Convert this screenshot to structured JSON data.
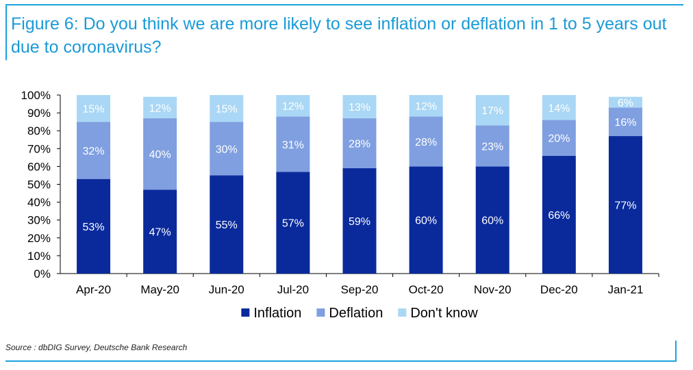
{
  "title": "Figure 6: Do you think we are more likely to see inflation or deflation in 1 to 5 years out due to coronavirus?",
  "source": "Source : dbDIG Survey, Deutsche Bank Research",
  "chart_data": {
    "type": "bar",
    "stacked": true,
    "categories": [
      "Apr-20",
      "May-20",
      "Jun-20",
      "Jul-20",
      "Sep-20",
      "Oct-20",
      "Nov-20",
      "Dec-20",
      "Jan-21"
    ],
    "series": [
      {
        "name": "Inflation",
        "color": "#0a2a9c",
        "label_color": "#ffffff",
        "values": [
          53,
          47,
          55,
          57,
          59,
          60,
          60,
          66,
          77
        ]
      },
      {
        "name": "Deflation",
        "color": "#7f9fe0",
        "label_color": "#ffffff",
        "values": [
          32,
          40,
          30,
          31,
          28,
          28,
          23,
          20,
          16
        ]
      },
      {
        "name": "Don't know",
        "color": "#a9d7f5",
        "label_color": "#ffffff",
        "values": [
          15,
          12,
          15,
          12,
          13,
          12,
          17,
          14,
          6
        ]
      }
    ],
    "ylim": [
      0,
      100
    ],
    "yticks": [
      "0%",
      "10%",
      "20%",
      "30%",
      "40%",
      "50%",
      "60%",
      "70%",
      "80%",
      "90%",
      "100%"
    ],
    "value_suffix": "%",
    "legend": "bottom"
  }
}
